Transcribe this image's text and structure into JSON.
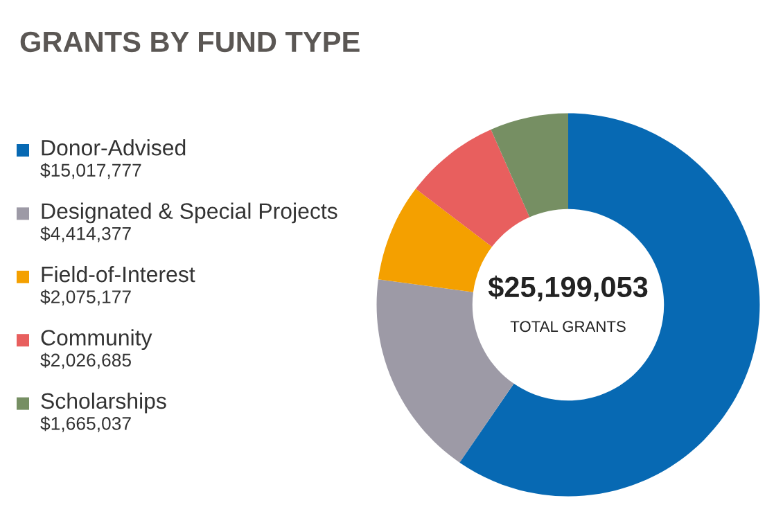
{
  "chart_data": {
    "type": "donut",
    "title": "GRANTS BY FUND TYPE",
    "categories": [
      "Donor-Advised",
      "Designated & Special Projects",
      "Field-of-Interest",
      "Community",
      "Scholarships"
    ],
    "values": [
      15017777,
      4414377,
      2075177,
      2026685,
      1665037
    ],
    "value_labels": [
      "$15,017,777",
      "$4,414,377",
      "$2,075,177",
      "$2,026,685",
      "$1,665,037"
    ],
    "colors": [
      "#0769b3",
      "#9d9aa6",
      "#f4a000",
      "#e85f5e",
      "#768f63"
    ],
    "annotations": [
      "$25,199,053",
      "TOTAL GRANTS"
    ],
    "legend": "left"
  }
}
